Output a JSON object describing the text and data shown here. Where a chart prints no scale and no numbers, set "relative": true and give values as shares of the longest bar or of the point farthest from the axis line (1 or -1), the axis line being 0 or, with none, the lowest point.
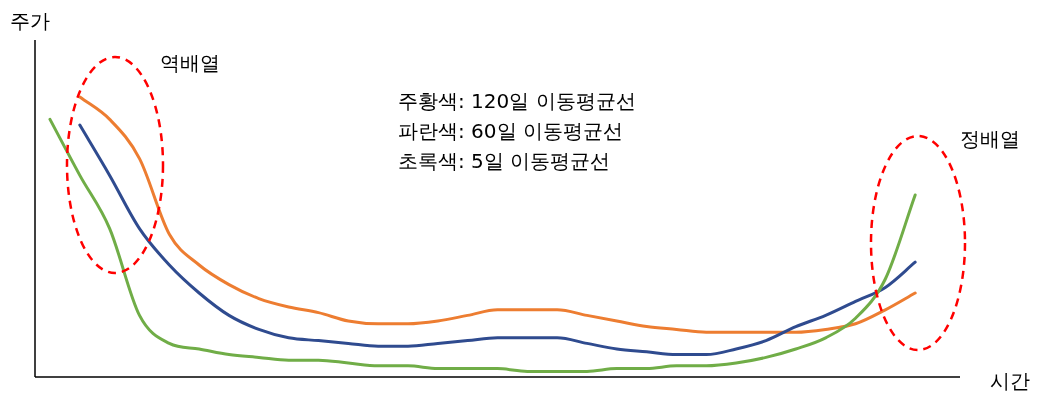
{
  "chart_data": {
    "type": "line",
    "relative": true,
    "xlabel": "시간",
    "ylabel": "주가",
    "categories": [
      null,
      null,
      null,
      null,
      null,
      null,
      null,
      null,
      null,
      null,
      null,
      null,
      null,
      null,
      null,
      null,
      null,
      null,
      null,
      null,
      null,
      null,
      null,
      null,
      null,
      null,
      null,
      null,
      null,
      null,
      null
    ],
    "series": [
      {
        "color": "#ed7d31",
        "values": [
          null,
          1.0,
          0.92,
          0.78,
          0.51,
          0.4,
          0.33,
          0.28,
          0.25,
          0.23,
          0.2,
          0.19,
          0.19,
          0.2,
          0.22,
          0.24,
          0.24,
          0.24,
          0.22,
          0.2,
          0.18,
          0.17,
          0.16,
          0.16,
          0.16,
          0.16,
          0.17,
          0.19,
          0.24,
          0.3,
          null
        ]
      },
      {
        "color": "#2f4b8f",
        "values": [
          null,
          0.9,
          0.72,
          0.53,
          0.4,
          0.3,
          0.22,
          0.17,
          0.14,
          0.13,
          0.12,
          0.11,
          0.11,
          0.12,
          0.13,
          0.14,
          0.14,
          0.14,
          0.12,
          0.1,
          0.09,
          0.08,
          0.08,
          0.1,
          0.13,
          0.18,
          0.22,
          0.27,
          0.32,
          0.41,
          null
        ]
      },
      {
        "color": "#70ad47",
        "values": [
          0.92,
          0.72,
          0.53,
          0.22,
          0.12,
          0.1,
          0.08,
          0.07,
          0.06,
          0.06,
          0.05,
          0.04,
          0.04,
          0.03,
          0.03,
          0.03,
          0.02,
          0.02,
          0.02,
          0.03,
          0.03,
          0.04,
          0.04,
          0.05,
          0.07,
          0.1,
          0.14,
          0.21,
          0.35,
          0.65,
          null
        ]
      }
    ],
    "annotations": [
      "역배열",
      "정배열",
      "주황색: 120일 이동평균선",
      "파란색: 60일 이동평균선",
      "초록색: 5일 이동평균선"
    ]
  }
}
